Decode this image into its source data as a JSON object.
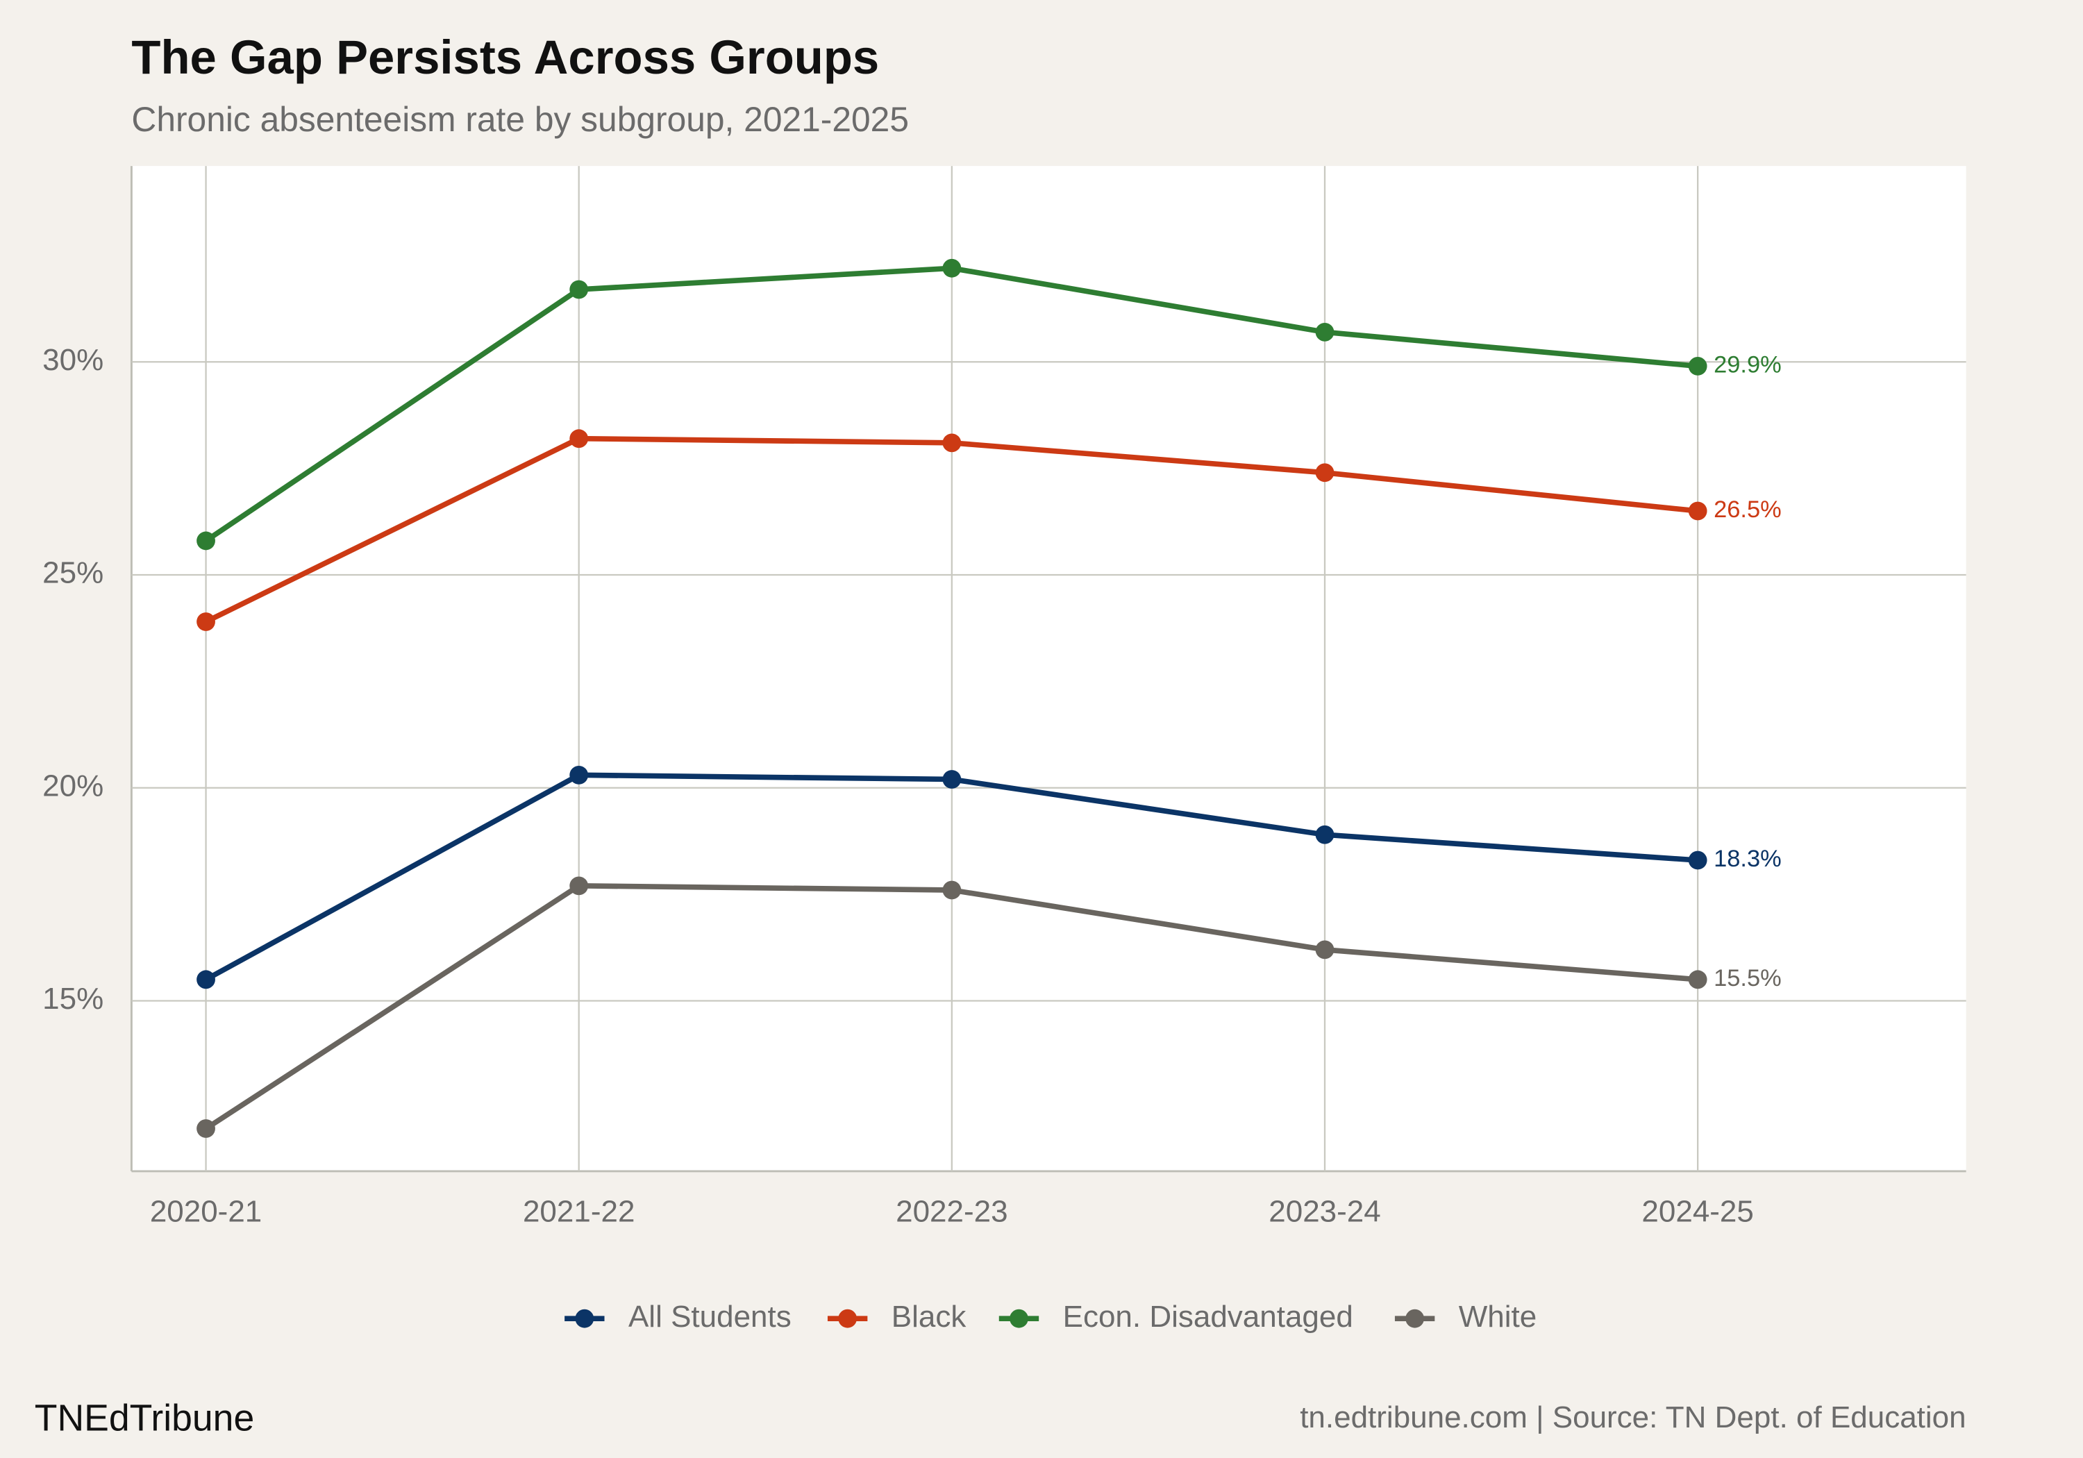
{
  "chart_data": {
    "type": "line",
    "title": "The Gap Persists Across Groups",
    "subtitle": "Chronic absenteeism rate by subgroup, 2021-2025",
    "categories": [
      "2020-21",
      "2021-22",
      "2022-23",
      "2023-24",
      "2024-25"
    ],
    "series": [
      {
        "name": "All Students",
        "color": "#0b3466",
        "values": [
          15.5,
          20.3,
          20.2,
          18.9,
          18.3
        ],
        "value_labels": [
          null,
          null,
          null,
          null,
          "18.3%"
        ]
      },
      {
        "name": "Black",
        "color": "#cc3a14",
        "values": [
          23.9,
          28.2,
          28.1,
          27.4,
          26.5
        ],
        "value_labels": [
          null,
          null,
          null,
          null,
          "26.5%"
        ]
      },
      {
        "name": "Econ. Disadvantaged",
        "color": "#2e7d32",
        "values": [
          25.8,
          31.7,
          32.2,
          30.7,
          29.9
        ],
        "value_labels": [
          null,
          null,
          null,
          null,
          "29.9%"
        ]
      },
      {
        "name": "White",
        "color": "#69655f",
        "values": [
          12.0,
          17.7,
          17.6,
          16.2,
          15.5
        ],
        "value_labels": [
          null,
          null,
          null,
          null,
          "15.5%"
        ]
      }
    ],
    "ylim": [
      11,
      34.6
    ],
    "yticks": [
      {
        "value": 15,
        "label": "15%"
      },
      {
        "value": 20,
        "label": "20%"
      },
      {
        "value": 25,
        "label": "25%"
      },
      {
        "value": 30,
        "label": "30%"
      }
    ],
    "grid": true,
    "legend": "bottom",
    "brand": "TNEdTribune",
    "source": "tn.edtribune.com | Source: TN Dept. of Education"
  }
}
